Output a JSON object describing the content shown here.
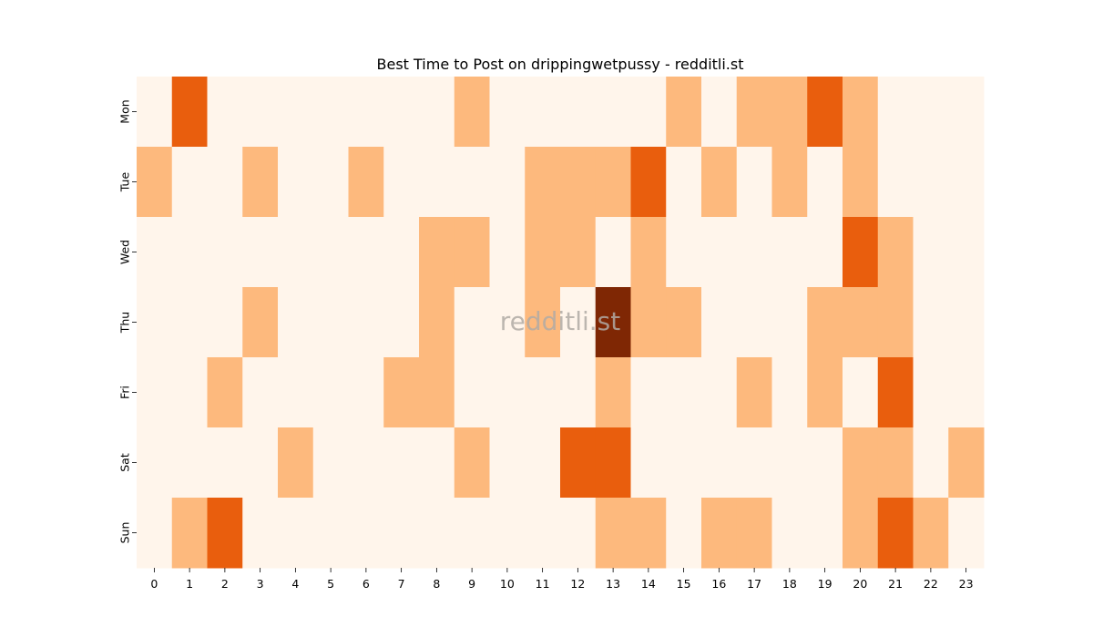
{
  "chart_data": {
    "type": "heatmap",
    "title": "Best Time to Post on drippingwetpussy - redditli.st",
    "watermark": "redditli.st",
    "x": [
      "0",
      "1",
      "2",
      "3",
      "4",
      "5",
      "6",
      "7",
      "8",
      "9",
      "10",
      "11",
      "12",
      "13",
      "14",
      "15",
      "16",
      "17",
      "18",
      "19",
      "20",
      "21",
      "22",
      "23"
    ],
    "y": [
      "Mon",
      "Tue",
      "Wed",
      "Thu",
      "Fri",
      "Sat",
      "Sun"
    ],
    "values": [
      [
        0,
        2,
        0,
        0,
        0,
        0,
        0,
        0,
        0,
        1,
        0,
        0,
        0,
        0,
        0,
        1,
        0,
        1,
        1,
        2,
        1,
        0,
        0,
        0
      ],
      [
        1,
        0,
        0,
        1,
        0,
        0,
        1,
        0,
        0,
        0,
        0,
        1,
        1,
        1,
        2,
        0,
        1,
        0,
        1,
        0,
        1,
        0,
        0,
        0
      ],
      [
        0,
        0,
        0,
        0,
        0,
        0,
        0,
        0,
        1,
        1,
        0,
        1,
        1,
        0,
        1,
        0,
        0,
        0,
        0,
        0,
        2,
        1,
        0,
        0
      ],
      [
        0,
        0,
        0,
        1,
        0,
        0,
        0,
        0,
        1,
        0,
        0,
        1,
        0,
        3,
        1,
        1,
        0,
        0,
        0,
        1,
        1,
        1,
        0,
        0
      ],
      [
        0,
        0,
        1,
        0,
        0,
        0,
        0,
        1,
        1,
        0,
        0,
        0,
        0,
        1,
        0,
        0,
        0,
        1,
        0,
        1,
        0,
        2,
        0,
        0
      ],
      [
        0,
        0,
        0,
        0,
        1,
        0,
        0,
        0,
        0,
        1,
        0,
        0,
        2,
        2,
        0,
        0,
        0,
        0,
        0,
        0,
        1,
        1,
        0,
        1
      ],
      [
        0,
        1,
        2,
        0,
        0,
        0,
        0,
        0,
        0,
        0,
        0,
        0,
        0,
        1,
        1,
        0,
        1,
        1,
        0,
        0,
        1,
        2,
        1,
        0
      ]
    ],
    "colors": [
      "#fff5eb",
      "#fdb97d",
      "#e95e0d",
      "#7f2704"
    ],
    "colormap": "Oranges",
    "colorbar": false,
    "grid": false
  }
}
